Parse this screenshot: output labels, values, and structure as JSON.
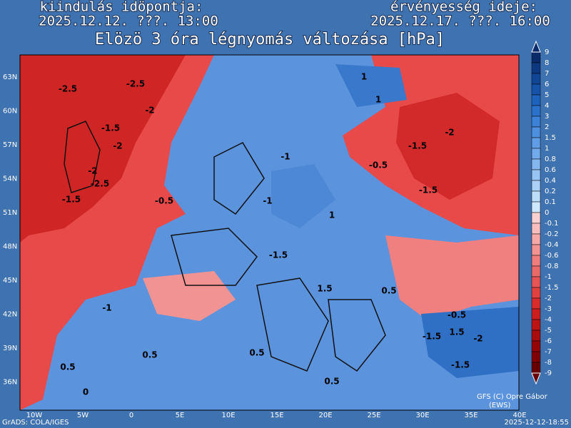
{
  "header": {
    "left_label": "kiindulás idöpontja:",
    "left_time": "2025.12.12. ???. 13:00",
    "right_label": "érvényesség ideje:",
    "right_time": "2025.12.17. ???. 16:00",
    "title": "Elözö 3 óra légnyomás változása [hPa]"
  },
  "map": {
    "lat_labels": [
      "63N",
      "60N",
      "57N",
      "54N",
      "51N",
      "48N",
      "45N",
      "42N",
      "39N",
      "36N"
    ],
    "lon_labels": [
      "10W",
      "5W",
      "0",
      "5E",
      "10E",
      "15E",
      "20E",
      "25E",
      "30E",
      "35E",
      "40E"
    ],
    "contour_labels": [
      "-2.5",
      "-2.5",
      "-2",
      "-1.5",
      "-2",
      "-2",
      "-2.5",
      "-1.5",
      "-0.5",
      "-2",
      "-1.5",
      "-0.5",
      "-1.5",
      "-1",
      "-1",
      "1",
      "-1.5",
      "-1",
      "1",
      "1",
      "1.5",
      "1.5",
      "0.5",
      "0.5",
      "0.5",
      "-1.5",
      "-2",
      "-1.5",
      "-0.5",
      "0.5",
      "0",
      "0.5"
    ]
  },
  "colorbar": {
    "labels": [
      "9",
      "8",
      "7",
      "6",
      "5",
      "4",
      "3",
      "2",
      "1.5",
      "1",
      "0.8",
      "0.6",
      "0.4",
      "0.2",
      "0.1",
      "0",
      "-0.1",
      "-0.2",
      "-0.4",
      "-0.6",
      "-0.8",
      "-1",
      "-1.5",
      "-2",
      "-3",
      "-4",
      "-5",
      "-6",
      "-7",
      "-8",
      "-9"
    ],
    "colors": [
      "#0a2a6a",
      "#0d3880",
      "#114596",
      "#1553aa",
      "#1d62bd",
      "#2b72cc",
      "#3b82d8",
      "#4d90e0",
      "#5f9de6",
      "#72aaeb",
      "#85b7ef",
      "#98c4f3",
      "#abd0f6",
      "#bddcf9",
      "#cfe7fb",
      "#fbd0d0",
      "#f8bdbd",
      "#f5a8a8",
      "#f29393",
      "#ee7e7e",
      "#ea6a6a",
      "#e55555",
      "#df4040",
      "#d82c2c",
      "#cc1e1e",
      "#bb1414",
      "#a80c0c",
      "#940606",
      "#7e0202",
      "#680000"
    ]
  },
  "footer": {
    "left": "GrADS: COLA/IGES",
    "right": "2025-12-12-18:55",
    "credit_1": "GFS (C) Opre Gábor",
    "credit_2": "(EWS)"
  }
}
